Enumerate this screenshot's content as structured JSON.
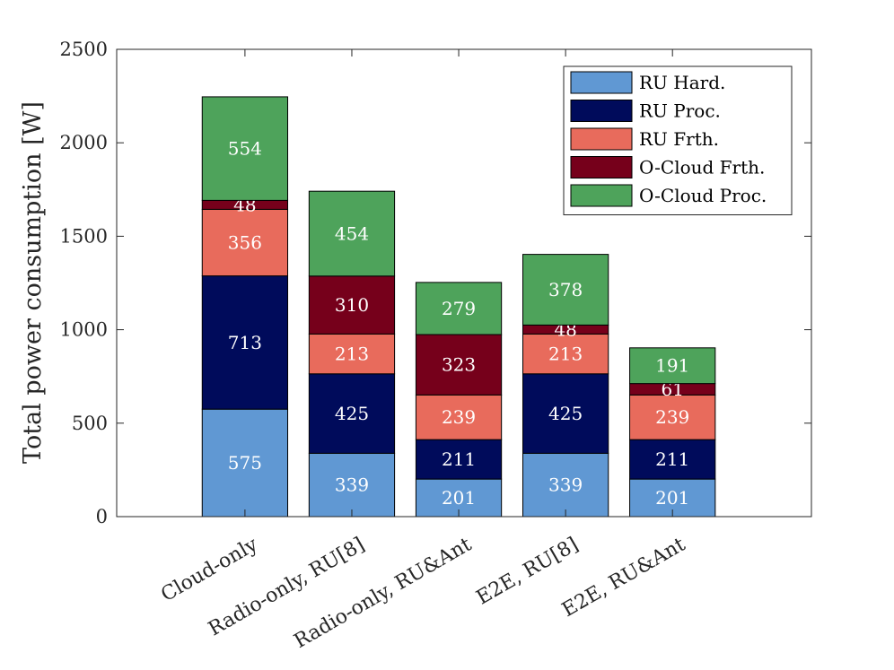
{
  "chart_data": {
    "type": "bar",
    "stacked": true,
    "categories": [
      "Cloud-only",
      "Radio-only, RU[8]",
      "Radio-only, RU&Ant",
      "E2E, RU[8]",
      "E2E, RU&Ant"
    ],
    "series": [
      {
        "name": "RU Hard.",
        "color": "#6098d3",
        "values": [
          575,
          339,
          201,
          339,
          201
        ]
      },
      {
        "name": "RU Proc.",
        "color": "#000b5b",
        "values": [
          713,
          425,
          211,
          425,
          211
        ]
      },
      {
        "name": "RU Frth.",
        "color": "#e86b5c",
        "values": [
          356,
          213,
          239,
          213,
          239
        ]
      },
      {
        "name": "O-Cloud Frth.",
        "color": "#76001b",
        "values": [
          48,
          310,
          323,
          48,
          61
        ]
      },
      {
        "name": "O-Cloud Proc.",
        "color": "#4ea35b",
        "values": [
          554,
          454,
          279,
          378,
          191
        ]
      }
    ],
    "segment_labels": [
      [
        "575",
        "713",
        "356",
        "48",
        "554"
      ],
      [
        "339",
        "425",
        "213",
        "310",
        "454"
      ],
      [
        "201",
        "211",
        "239",
        "323",
        "279"
      ],
      [
        "339",
        "425",
        "213",
        "48",
        "378"
      ],
      [
        "201",
        "211",
        "239",
        "61",
        "191"
      ]
    ],
    "title": "",
    "xlabel": "",
    "ylabel": "Total power consumption [W]",
    "ylim": [
      0,
      2500
    ],
    "yticks": [
      0,
      500,
      1000,
      1500,
      2000,
      2500
    ],
    "ytick_labels": [
      "0",
      "500",
      "1000",
      "1500",
      "2000",
      "2500"
    ],
    "grid": false,
    "legend_position": "top-right"
  }
}
